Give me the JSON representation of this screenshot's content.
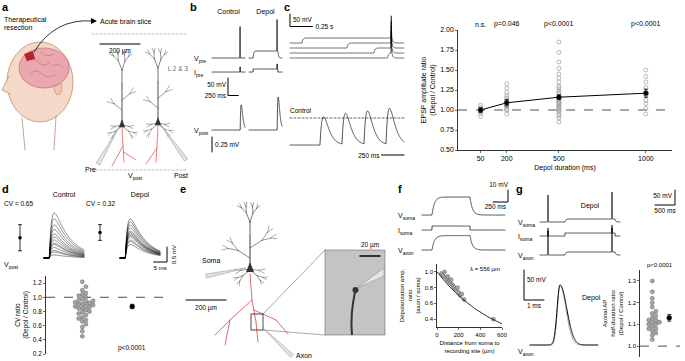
{
  "chart_data": [
    {
      "type": "scatter",
      "y_label": "EPSP amplitude ratio (Depol / Control)",
      "x_label": "Depol duration (ms)",
      "xlim": [
        -80,
        1150
      ],
      "xticks": [
        50,
        200,
        500,
        1000
      ],
      "ylim": [
        0.5,
        2.0
      ],
      "yticks": [
        {
          "value": 0.5,
          "label": "0.50"
        },
        {
          "value": 0.75,
          "label": "0.75"
        },
        {
          "value": 1,
          "label": "1.00"
        },
        {
          "value": 1.25,
          "label": "1.25"
        },
        {
          "value": 1.5,
          "label": "1.50"
        },
        {
          "value": 1.75,
          "label": "1.75"
        },
        {
          "value": 2,
          "label": "2.00"
        }
      ],
      "grid": false,
      "reference": {
        "value": 1,
        "line_style": "dashed"
      },
      "series": [
        {
          "color": "#a6a6a6",
          "marker": "open circle",
          "x": [
            50,
            50,
            50,
            50,
            50,
            50,
            200,
            200,
            200,
            200,
            200,
            200,
            200,
            200,
            200,
            200,
            200,
            200,
            200,
            200,
            500,
            500,
            500,
            500,
            500,
            500,
            500,
            500,
            500,
            500,
            500,
            500,
            500,
            500,
            500,
            500,
            500,
            500,
            500,
            500,
            500,
            500,
            500,
            500,
            500,
            500,
            500,
            500,
            500,
            500,
            500,
            500,
            1000,
            1000,
            1000,
            1000,
            1000,
            1000,
            1000,
            1000,
            1000,
            1000
          ],
          "values": [
            0.92,
            0.96,
            0.98,
            1.0,
            1.03,
            1.06,
            0.95,
            1.0,
            1.0,
            1.02,
            1.05,
            1.05,
            1.08,
            1.1,
            1.12,
            1.15,
            1.18,
            1.22,
            1.27,
            1.33,
            0.85,
            0.9,
            0.93,
            0.95,
            0.98,
            1.0,
            1.0,
            1.02,
            1.03,
            1.04,
            1.05,
            1.07,
            1.08,
            1.09,
            1.1,
            1.1,
            1.12,
            1.14,
            1.15,
            1.17,
            1.2,
            1.22,
            1.25,
            1.28,
            1.3,
            1.35,
            1.4,
            1.45,
            1.52,
            1.6,
            1.72,
            1.85,
            0.95,
            1.02,
            1.08,
            1.12,
            1.18,
            1.22,
            1.28,
            1.35,
            1.42,
            1.5
          ]
        },
        {
          "color": "#000000",
          "marker": "circle",
          "line_style": "solid",
          "x": [
            50,
            200,
            500,
            1000
          ],
          "values": [
            1.0,
            1.09,
            1.16,
            1.21
          ],
          "errors": [
            0.03,
            0.04,
            0.03,
            0.05
          ]
        }
      ],
      "annotations": [
        {
          "x": 50,
          "text": "n.s."
        },
        {
          "x": 200,
          "text": "p=0.046"
        },
        {
          "x": 500,
          "text": "p<0.0001"
        },
        {
          "x": 1000,
          "text": "p<0.0001"
        }
      ]
    },
    {
      "type": "scatter",
      "y_label": "CV ratio (Depol / Control)",
      "ylim": [
        0.2,
        1.3
      ],
      "yticks": [
        0.2,
        0.4,
        0.6,
        0.8,
        {
          "value": 1,
          "label": "1.0"
        },
        1.2
      ],
      "tick_labels": "y",
      "grid": false,
      "reference": {
        "value": 1,
        "line_style": "dashed"
      },
      "series": [
        {
          "color": "#a6a6a6",
          "marker": "circle",
          "values": [
            0.45,
            0.52,
            0.58,
            0.62,
            0.66,
            0.68,
            0.7,
            0.72,
            0.75,
            0.77,
            0.79,
            0.8,
            0.82,
            0.84,
            0.85,
            0.86,
            0.87,
            0.88,
            0.89,
            0.9,
            0.91,
            0.92,
            0.93,
            0.94,
            0.95,
            0.96,
            0.98,
            1.0,
            1.02,
            1.04,
            1.06,
            1.1,
            1.15,
            1.22
          ]
        },
        {
          "color": "#000000",
          "marker": "circle",
          "values": [
            0.87
          ],
          "errors": [
            0.03
          ]
        }
      ],
      "annotations": [
        {
          "text": "p<0.0001"
        }
      ]
    },
    {
      "type": "scatter",
      "y_label": "Depolarization amp. ratio (axon / soma)",
      "x_label": "Distance from soma to recording site (µm)",
      "xlim": [
        0,
        600
      ],
      "xticks": [
        0,
        200,
        400,
        600
      ],
      "ylim": [
        0.3,
        1.1
      ],
      "yticks": [
        0.4,
        0.6,
        0.8,
        {
          "value": 1,
          "label": "1.0"
        }
      ],
      "grid": false,
      "series": [
        {
          "color": "#a6a6a6",
          "marker": "circle",
          "x": [
            40,
            55,
            70,
            80,
            95,
            100,
            110,
            120,
            130,
            140,
            150,
            160,
            175,
            190,
            200,
            215,
            230,
            250,
            520
          ],
          "values": [
            0.98,
            0.95,
            1.0,
            0.93,
            0.9,
            0.94,
            0.88,
            0.86,
            0.9,
            0.84,
            0.82,
            0.8,
            0.78,
            0.8,
            0.74,
            0.7,
            0.72,
            0.65,
            0.4
          ]
        }
      ],
      "fit": {
        "lambda": 556,
        "label": "λ = 556 µm",
        "color": "#000000"
      }
    },
    {
      "type": "scatter",
      "y_label": "Axonal AP half-duration ratio (Depol / Control)",
      "ylim": [
        0.95,
        1.35
      ],
      "yticks": [
        {
          "value": 1,
          "label": "1.0"
        },
        1.1,
        1.2,
        1.3
      ],
      "tick_labels": "y",
      "grid": false,
      "reference": {
        "value": 1,
        "line_style": "dashed"
      },
      "series": [
        {
          "color": "#a6a6a6",
          "marker": "circle",
          "values": [
            1.03,
            1.05,
            1.06,
            1.07,
            1.08,
            1.08,
            1.09,
            1.1,
            1.1,
            1.11,
            1.11,
            1.12,
            1.12,
            1.13,
            1.14,
            1.15,
            1.16,
            1.18,
            1.2,
            1.22,
            1.25,
            1.3
          ]
        },
        {
          "color": "#000000",
          "marker": "circle",
          "values": [
            1.13
          ],
          "errors": [
            0.015
          ]
        }
      ],
      "annotations": [
        {
          "text": "p<0.0001"
        }
      ]
    }
  ],
  "panels": {
    "a": {
      "letter": "a",
      "resection": "Therapeutical resection",
      "slice": "Acute brain slice",
      "layer": "L 2 & 3",
      "pre": "Pre",
      "post": "Post",
      "trace": {
        "main": "V",
        "sub": "post"
      },
      "scale_bar": {
        "value": 200,
        "label": "200 µm"
      }
    },
    "b": {
      "letter": "b",
      "conditions": [
        "Control",
        "Depol"
      ],
      "traces": [
        {
          "main": "V",
          "sub": "pre"
        },
        {
          "main": "I",
          "sub": "pre"
        },
        {
          "main": "V",
          "sub": "post"
        }
      ],
      "scale_v": {
        "value": 50,
        "label": "50 mV"
      },
      "scale_t": {
        "value": 250,
        "label": "250 ms"
      },
      "scale_post": {
        "value": 0.25,
        "label": "0.25 mV"
      },
      "ap_mv": 90,
      "depol_mv": [
        0,
        20
      ],
      "epsp_mv": [
        0.42,
        0.55
      ]
    },
    "c": {
      "letter": "c",
      "scale_v": {
        "value": 50,
        "label": "50 mV"
      },
      "scale_t": {
        "value": 0.25,
        "label": "0.25 s"
      },
      "scale_t_post": {
        "value": 250,
        "label": "250 ms"
      },
      "control": "Control",
      "control_epsp_mv": 0.45,
      "epsp_mv": [
        0.47,
        0.52,
        0.56,
        0.6
      ]
    },
    "d": {
      "letter": "d",
      "conditions": [
        "Control",
        "Depol"
      ],
      "cv_labels": [
        "CV = 0.65",
        "CV = 0.32"
      ],
      "trace": {
        "main": "V",
        "sub": "post"
      },
      "scale_v": {
        "value": 0.5,
        "label": "0.5 mV"
      },
      "scale_t": {
        "value": 5,
        "label": "5 ms"
      },
      "epsp_mv": [
        [
          0.1,
          0.2,
          0.25,
          0.35,
          0.45,
          0.5,
          0.6,
          0.7,
          0.8,
          0.95,
          1.1,
          1.3,
          1.5
        ],
        [
          0.45,
          0.55,
          0.6,
          0.7,
          0.75,
          0.8,
          0.85,
          0.9,
          1.0,
          1.1,
          1.2,
          1.3
        ]
      ]
    },
    "e": {
      "letter": "e",
      "soma": "Soma",
      "axon": "Axon",
      "scale_bar": {
        "value": 200,
        "label": "200 µm"
      },
      "inset_scale": {
        "value": 20,
        "label": "20 µm"
      }
    },
    "f": {
      "letter": "f",
      "traces": [
        {
          "main": "V",
          "sub": "soma"
        },
        {
          "main": "I",
          "sub": "soma"
        },
        {
          "main": "V",
          "sub": "axon"
        }
      ],
      "scale_v": {
        "value": 10,
        "label": "10 mV"
      },
      "scale_t": {
        "value": 250,
        "label": "250 ms"
      },
      "depol_mv": [
        15,
        12
      ]
    },
    "g": {
      "letter": "g",
      "traces": [
        {
          "main": "V",
          "sub": "soma"
        },
        {
          "main": "I",
          "sub": "soma"
        },
        {
          "main": "V",
          "sub": "axon"
        }
      ],
      "depol": "Depol",
      "scale_v": {
        "value": 50,
        "label": "50 mV"
      },
      "scale_t": {
        "value": 500,
        "label": "500 ms"
      },
      "ap_mv": 90,
      "depol_mv": 10,
      "ap": {
        "scale_v": {
          "value": 50,
          "label": "50 mV"
        },
        "scale_t": {
          "value": 1,
          "label": "1 ms"
        },
        "trace": {
          "main": "V",
          "sub": "axon"
        },
        "amplitude_mv": 100,
        "half_duration_ms": [
          0.5,
          0.57
        ],
        "colors": [
          "#a6a6a6",
          "#000000"
        ]
      }
    }
  }
}
